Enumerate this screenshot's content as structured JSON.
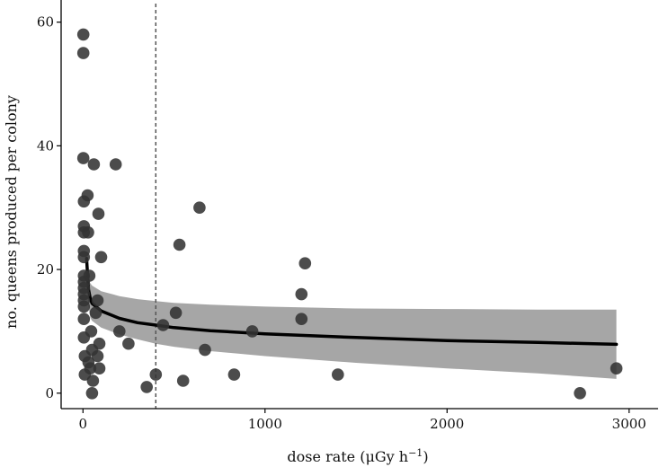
{
  "chart_data": {
    "type": "scatter",
    "title": "",
    "xlabel": {
      "main": "dose rate (μGy h",
      "sup": "−1",
      "close": ")"
    },
    "ylabel": "no. queens produced per colony",
    "xlim": [
      -120,
      3100
    ],
    "ylim": [
      -2.5,
      63
    ],
    "x_ticks": [
      0,
      1000,
      2000,
      3000
    ],
    "x_tick_labels": [
      "0",
      "1000",
      "2000",
      "3000"
    ],
    "y_ticks": [
      0,
      20,
      40,
      60
    ],
    "y_tick_labels": [
      "0",
      "20",
      "40",
      "60"
    ],
    "grid": false,
    "legend": "none",
    "vline_x": 400,
    "colors": {
      "points": "#333333",
      "fit": "#000000",
      "band": "#a6a6a6",
      "vline": "#555555"
    },
    "points": [
      {
        "x": 2,
        "y": 58
      },
      {
        "x": 2,
        "y": 55
      },
      {
        "x": 2,
        "y": 38
      },
      {
        "x": 60,
        "y": 37
      },
      {
        "x": 180,
        "y": 37
      },
      {
        "x": 25,
        "y": 32
      },
      {
        "x": 5,
        "y": 31
      },
      {
        "x": 640,
        "y": 30
      },
      {
        "x": 85,
        "y": 29
      },
      {
        "x": 5,
        "y": 27
      },
      {
        "x": 5,
        "y": 26
      },
      {
        "x": 28,
        "y": 26
      },
      {
        "x": 530,
        "y": 24
      },
      {
        "x": 5,
        "y": 23
      },
      {
        "x": 5,
        "y": 22
      },
      {
        "x": 100,
        "y": 22
      },
      {
        "x": 1220,
        "y": 21
      },
      {
        "x": 5,
        "y": 19
      },
      {
        "x": 35,
        "y": 19
      },
      {
        "x": 5,
        "y": 18
      },
      {
        "x": 5,
        "y": 17
      },
      {
        "x": 5,
        "y": 16
      },
      {
        "x": 1200,
        "y": 16
      },
      {
        "x": 5,
        "y": 15
      },
      {
        "x": 80,
        "y": 15
      },
      {
        "x": 5,
        "y": 14
      },
      {
        "x": 70,
        "y": 13
      },
      {
        "x": 510,
        "y": 13
      },
      {
        "x": 5,
        "y": 12
      },
      {
        "x": 1200,
        "y": 12
      },
      {
        "x": 440,
        "y": 11
      },
      {
        "x": 200,
        "y": 10
      },
      {
        "x": 930,
        "y": 10
      },
      {
        "x": 5,
        "y": 9
      },
      {
        "x": 45,
        "y": 10
      },
      {
        "x": 250,
        "y": 8
      },
      {
        "x": 90,
        "y": 8
      },
      {
        "x": 670,
        "y": 7
      },
      {
        "x": 50,
        "y": 7
      },
      {
        "x": 10,
        "y": 6
      },
      {
        "x": 30,
        "y": 5
      },
      {
        "x": 80,
        "y": 6
      },
      {
        "x": 40,
        "y": 4
      },
      {
        "x": 90,
        "y": 4
      },
      {
        "x": 10,
        "y": 3
      },
      {
        "x": 400,
        "y": 3
      },
      {
        "x": 830,
        "y": 3
      },
      {
        "x": 1400,
        "y": 3
      },
      {
        "x": 55,
        "y": 2
      },
      {
        "x": 550,
        "y": 2
      },
      {
        "x": 350,
        "y": 1
      },
      {
        "x": 50,
        "y": 0
      },
      {
        "x": 2730,
        "y": 0
      },
      {
        "x": 2930,
        "y": 4
      }
    ],
    "fit_line": {
      "x": [
        20,
        30,
        40,
        50,
        100,
        200,
        300,
        400,
        500,
        700,
        1000,
        1500,
        2000,
        2500,
        2930
      ],
      "y": [
        21.8,
        16.8,
        15.3,
        14.5,
        13.3,
        12.1,
        11.4,
        11.0,
        10.6,
        10.1,
        9.6,
        9.0,
        8.5,
        8.2,
        7.9
      ],
      "band_low": [
        18.0,
        14.2,
        12.2,
        11.7,
        10.6,
        9.5,
        8.7,
        8.0,
        7.5,
        6.8,
        6.0,
        4.9,
        4.0,
        3.2,
        2.3
      ],
      "band_high": [
        20.0,
        18.3,
        17.8,
        17.4,
        16.5,
        15.7,
        15.2,
        14.9,
        14.6,
        14.3,
        14.0,
        13.7,
        13.6,
        13.5,
        13.5
      ]
    }
  }
}
